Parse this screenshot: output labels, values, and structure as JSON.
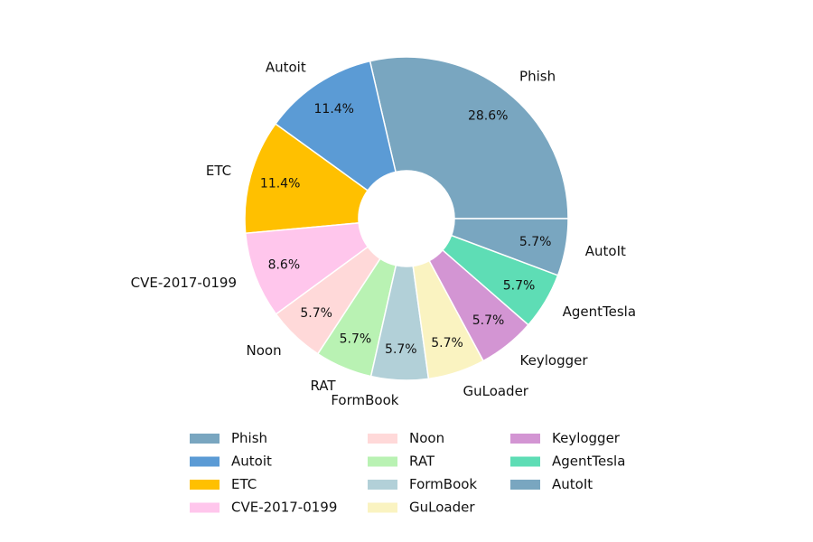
{
  "chart_data": {
    "type": "pie",
    "donut": true,
    "slices": [
      {
        "label": "Phish",
        "value": 28.6,
        "pct_text": "28.6%",
        "color": "#79A6C0"
      },
      {
        "label": "Autoit",
        "value": 11.4,
        "pct_text": "11.4%",
        "color": "#5B9BD5"
      },
      {
        "label": "ETC",
        "value": 11.4,
        "pct_text": "11.4%",
        "color": "#FFC000"
      },
      {
        "label": "CVE-2017-0199",
        "value": 8.6,
        "pct_text": "8.6%",
        "color": "#FFC6EC"
      },
      {
        "label": "Noon",
        "value": 5.7,
        "pct_text": "5.7%",
        "color": "#FFD9D9"
      },
      {
        "label": "RAT",
        "value": 5.7,
        "pct_text": "5.7%",
        "color": "#B9F2B3"
      },
      {
        "label": "FormBook",
        "value": 5.7,
        "pct_text": "5.7%",
        "color": "#B2D0D8"
      },
      {
        "label": "GuLoader",
        "value": 5.7,
        "pct_text": "5.7%",
        "color": "#FAF3C1"
      },
      {
        "label": "Keylogger",
        "value": 5.7,
        "pct_text": "5.7%",
        "color": "#D395D3"
      },
      {
        "label": "AgentTesla",
        "value": 5.7,
        "pct_text": "5.7%",
        "color": "#5EDDB5"
      },
      {
        "label": "AutoIt",
        "value": 5.7,
        "pct_text": "5.7%",
        "color": "#79A6C0"
      }
    ],
    "legend_position": "bottom",
    "legend_columns": 3
  }
}
